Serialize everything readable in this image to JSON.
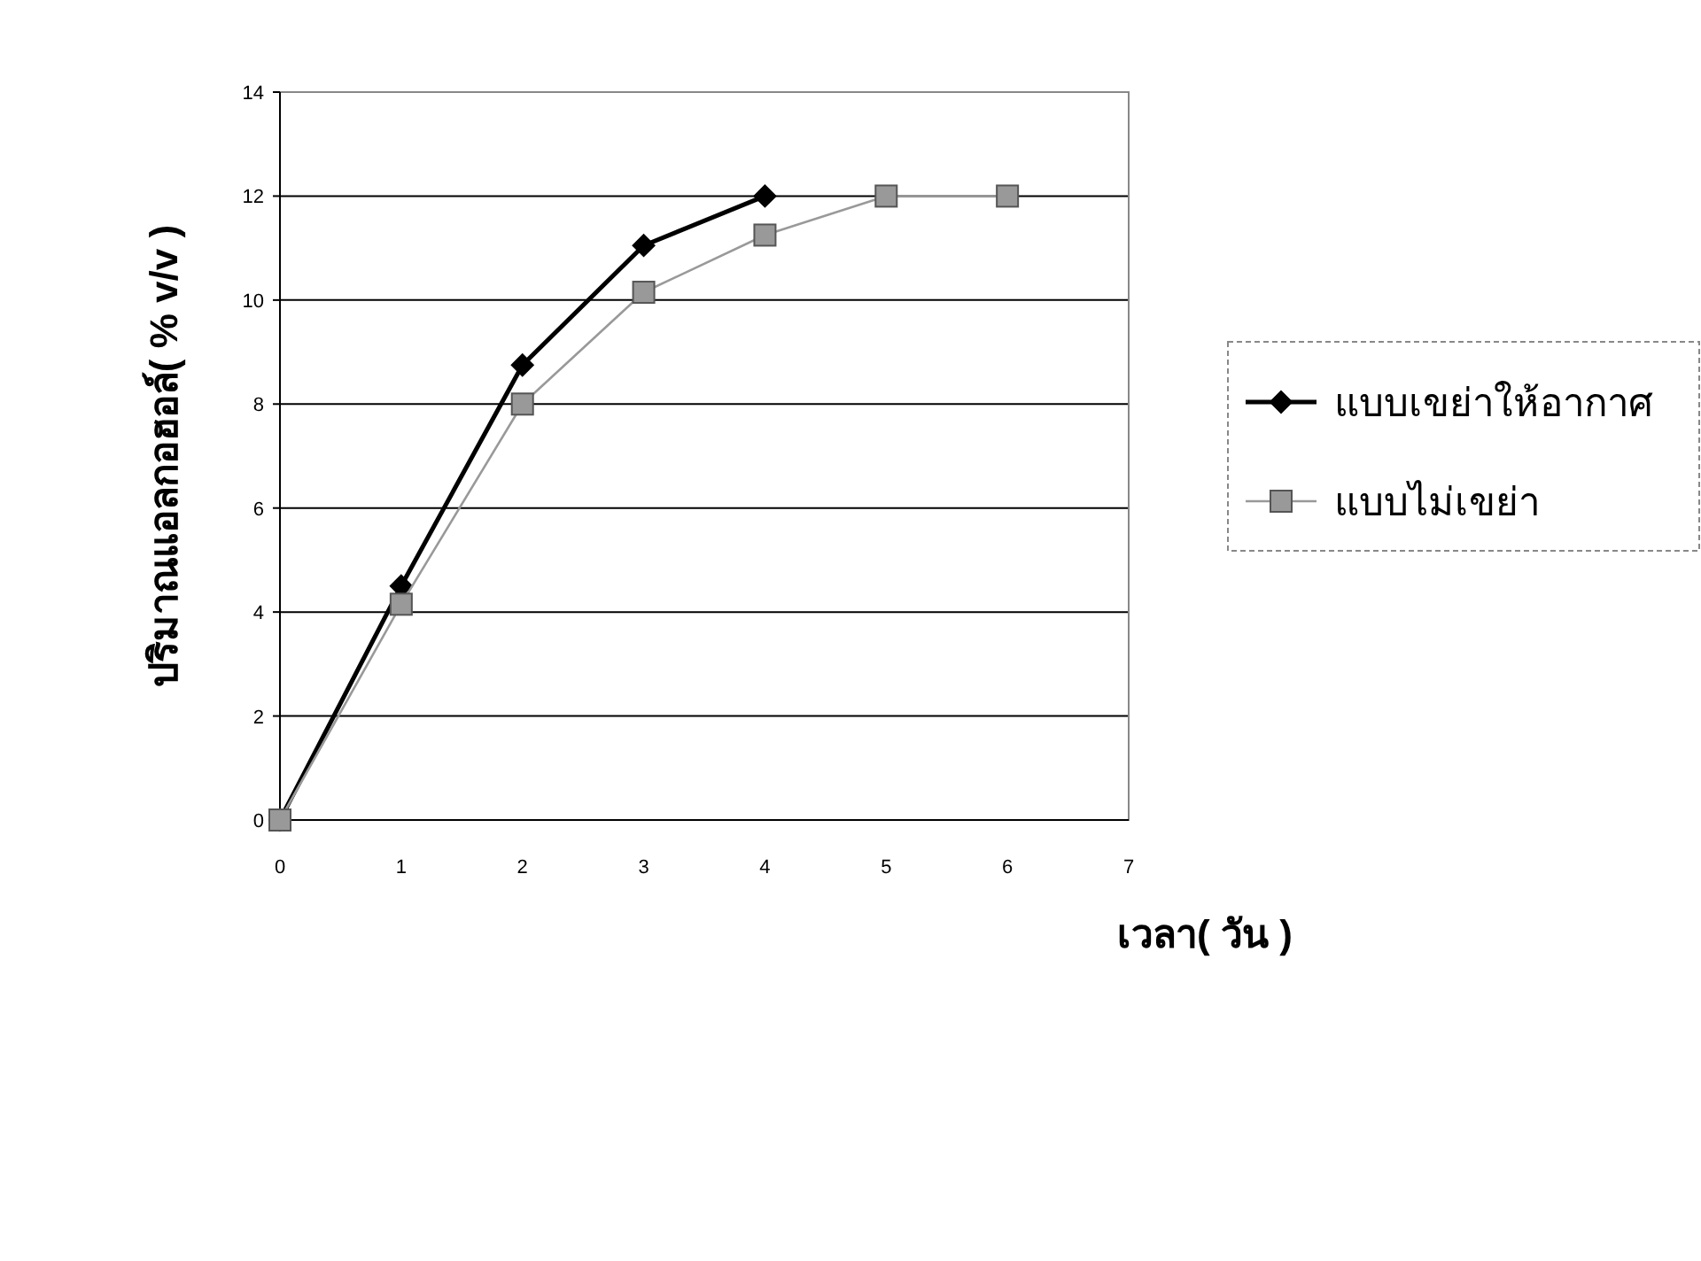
{
  "chart_data": {
    "type": "line",
    "xlabel": "เวลา( วัน )",
    "ylabel": "ปริมาณแอลกอฮอล์( % v/v )",
    "xlim": [
      0,
      7
    ],
    "xticks": [
      0,
      1,
      2,
      3,
      4,
      5,
      6,
      7
    ],
    "ylim": [
      0,
      14
    ],
    "yticks": [
      0,
      2,
      4,
      6,
      8,
      10,
      12,
      14
    ],
    "grid": "y",
    "legend": "right",
    "line_style": "solid",
    "series": [
      {
        "name": "แบบเขย่าให้อากาศ",
        "color": "#000000",
        "marker": "diamond",
        "x": [
          0,
          1,
          2,
          3,
          4
        ],
        "values": [
          0,
          4.5,
          8.75,
          11.05,
          12
        ]
      },
      {
        "name": "แบบไม่เขย่า",
        "color": "#999999",
        "marker": "square",
        "x": [
          0,
          1,
          2,
          3,
          4,
          5,
          6
        ],
        "values": [
          0,
          4.15,
          8,
          10.15,
          11.25,
          12,
          12
        ]
      }
    ]
  }
}
